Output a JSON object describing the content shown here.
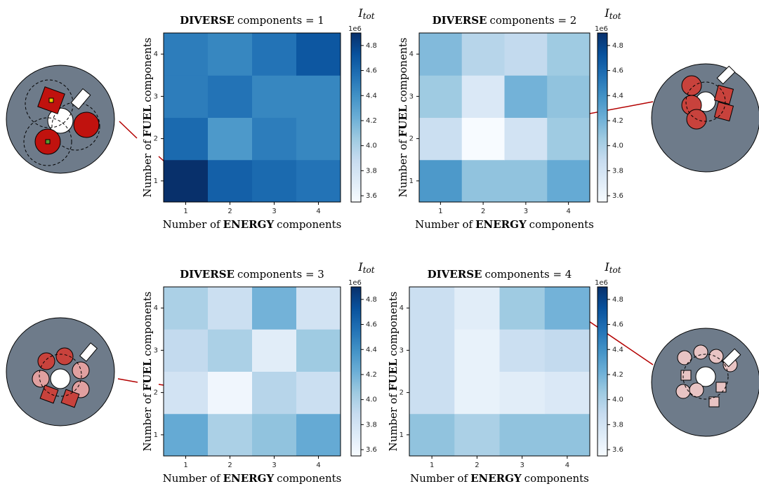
{
  "chart_data": [
    {
      "type": "heatmap",
      "title_bold": "DIVERSE",
      "title": "components = 1",
      "xlabel": [
        {
          "text": "Number of"
        },
        {
          "text": "ENERGY",
          "bold": true
        },
        {
          "text": "components"
        }
      ],
      "ylabel": [
        {
          "text": "Number of"
        },
        {
          "text": "FUEL",
          "bold": true
        },
        {
          "text": "components"
        }
      ],
      "x": [
        1,
        2,
        3,
        4
      ],
      "y": [
        1,
        2,
        3,
        4
      ],
      "xlim": [
        0.5,
        4.5
      ],
      "ylim": [
        0.5,
        4.5
      ],
      "values": [
        [
          4.9,
          4.65,
          4.6,
          4.55
        ],
        [
          4.6,
          4.35,
          4.5,
          4.45
        ],
        [
          4.5,
          4.55,
          4.45,
          4.45
        ],
        [
          4.5,
          4.45,
          4.55,
          4.7
        ]
      ],
      "colormap": [
        "#f7fbff",
        "#deebf7",
        "#c6dbef",
        "#9ecae1",
        "#6baed6",
        "#4292c6",
        "#2171b5",
        "#08519c",
        "#08306b"
      ],
      "clim": [
        3.55,
        4.9
      ],
      "cticks": [
        3.6,
        3.8,
        4.0,
        4.2,
        4.4,
        4.6,
        4.8
      ],
      "colorbar_label": "I",
      "colorbar_label_sub": "tot",
      "colorbar_offset": "1e6"
    },
    {
      "type": "heatmap",
      "title_bold": "DIVERSE",
      "title": "components = 2",
      "xlabel": [
        {
          "text": "Number of"
        },
        {
          "text": "ENERGY",
          "bold": true
        },
        {
          "text": "components"
        }
      ],
      "ylabel": [
        {
          "text": "Number of"
        },
        {
          "text": "FUEL",
          "bold": true
        },
        {
          "text": "components"
        }
      ],
      "x": [
        1,
        2,
        3,
        4
      ],
      "y": [
        1,
        2,
        3,
        4
      ],
      "xlim": [
        0.5,
        4.5
      ],
      "ylim": [
        0.5,
        4.5
      ],
      "values": [
        [
          4.35,
          4.1,
          4.1,
          4.25
        ],
        [
          3.85,
          3.55,
          3.8,
          4.05
        ],
        [
          4.05,
          3.75,
          4.2,
          4.1
        ],
        [
          4.15,
          3.95,
          3.9,
          4.05
        ]
      ],
      "colormap": [
        "#f7fbff",
        "#deebf7",
        "#c6dbef",
        "#9ecae1",
        "#6baed6",
        "#4292c6",
        "#2171b5",
        "#08519c",
        "#08306b"
      ],
      "clim": [
        3.55,
        4.9
      ],
      "cticks": [
        3.6,
        3.8,
        4.0,
        4.2,
        4.4,
        4.6,
        4.8
      ],
      "colorbar_label": "I",
      "colorbar_label_sub": "tot",
      "colorbar_offset": "1e6"
    },
    {
      "type": "heatmap",
      "title_bold": "DIVERSE",
      "title": "components = 3",
      "xlabel": [
        {
          "text": "Number of"
        },
        {
          "text": "ENERGY",
          "bold": true
        },
        {
          "text": "components"
        }
      ],
      "ylabel": [
        {
          "text": "Number of"
        },
        {
          "text": "FUEL",
          "bold": true
        },
        {
          "text": "components"
        }
      ],
      "x": [
        1,
        2,
        3,
        4
      ],
      "y": [
        1,
        2,
        3,
        4
      ],
      "xlim": [
        0.5,
        4.5
      ],
      "ylim": [
        0.5,
        4.5
      ],
      "values": [
        [
          4.25,
          4.0,
          4.1,
          4.25
        ],
        [
          3.8,
          3.6,
          3.95,
          3.85
        ],
        [
          3.9,
          4.0,
          3.7,
          4.05
        ],
        [
          4.0,
          3.85,
          4.2,
          3.8
        ]
      ],
      "colormap": [
        "#f7fbff",
        "#deebf7",
        "#c6dbef",
        "#9ecae1",
        "#6baed6",
        "#4292c6",
        "#2171b5",
        "#08519c",
        "#08306b"
      ],
      "clim": [
        3.55,
        4.9
      ],
      "cticks": [
        3.6,
        3.8,
        4.0,
        4.2,
        4.4,
        4.6,
        4.8
      ],
      "colorbar_label": "I",
      "colorbar_label_sub": "tot",
      "colorbar_offset": "1e6"
    },
    {
      "type": "heatmap",
      "title_bold": "DIVERSE",
      "title": "components = 4",
      "xlabel": [
        {
          "text": "Number of"
        },
        {
          "text": "ENERGY",
          "bold": true
        },
        {
          "text": "components"
        }
      ],
      "ylabel": [
        {
          "text": "Number of"
        },
        {
          "text": "FUEL",
          "bold": true
        },
        {
          "text": "components"
        }
      ],
      "x": [
        1,
        2,
        3,
        4
      ],
      "y": [
        1,
        2,
        3,
        4
      ],
      "xlim": [
        0.5,
        4.5
      ],
      "ylim": [
        0.5,
        4.5
      ],
      "values": [
        [
          4.1,
          4.0,
          4.1,
          4.1
        ],
        [
          3.85,
          3.65,
          3.7,
          3.75
        ],
        [
          3.85,
          3.65,
          3.85,
          3.9
        ],
        [
          3.85,
          3.7,
          4.05,
          4.2
        ]
      ],
      "colormap": [
        "#f7fbff",
        "#deebf7",
        "#c6dbef",
        "#9ecae1",
        "#6baed6",
        "#4292c6",
        "#2171b5",
        "#08519c",
        "#08306b"
      ],
      "clim": [
        3.55,
        4.9
      ],
      "cticks": [
        3.6,
        3.8,
        4.0,
        4.2,
        4.4,
        4.6,
        4.8
      ],
      "colorbar_label": "I",
      "colorbar_label_sub": "tot",
      "colorbar_offset": "1e6"
    }
  ]
}
